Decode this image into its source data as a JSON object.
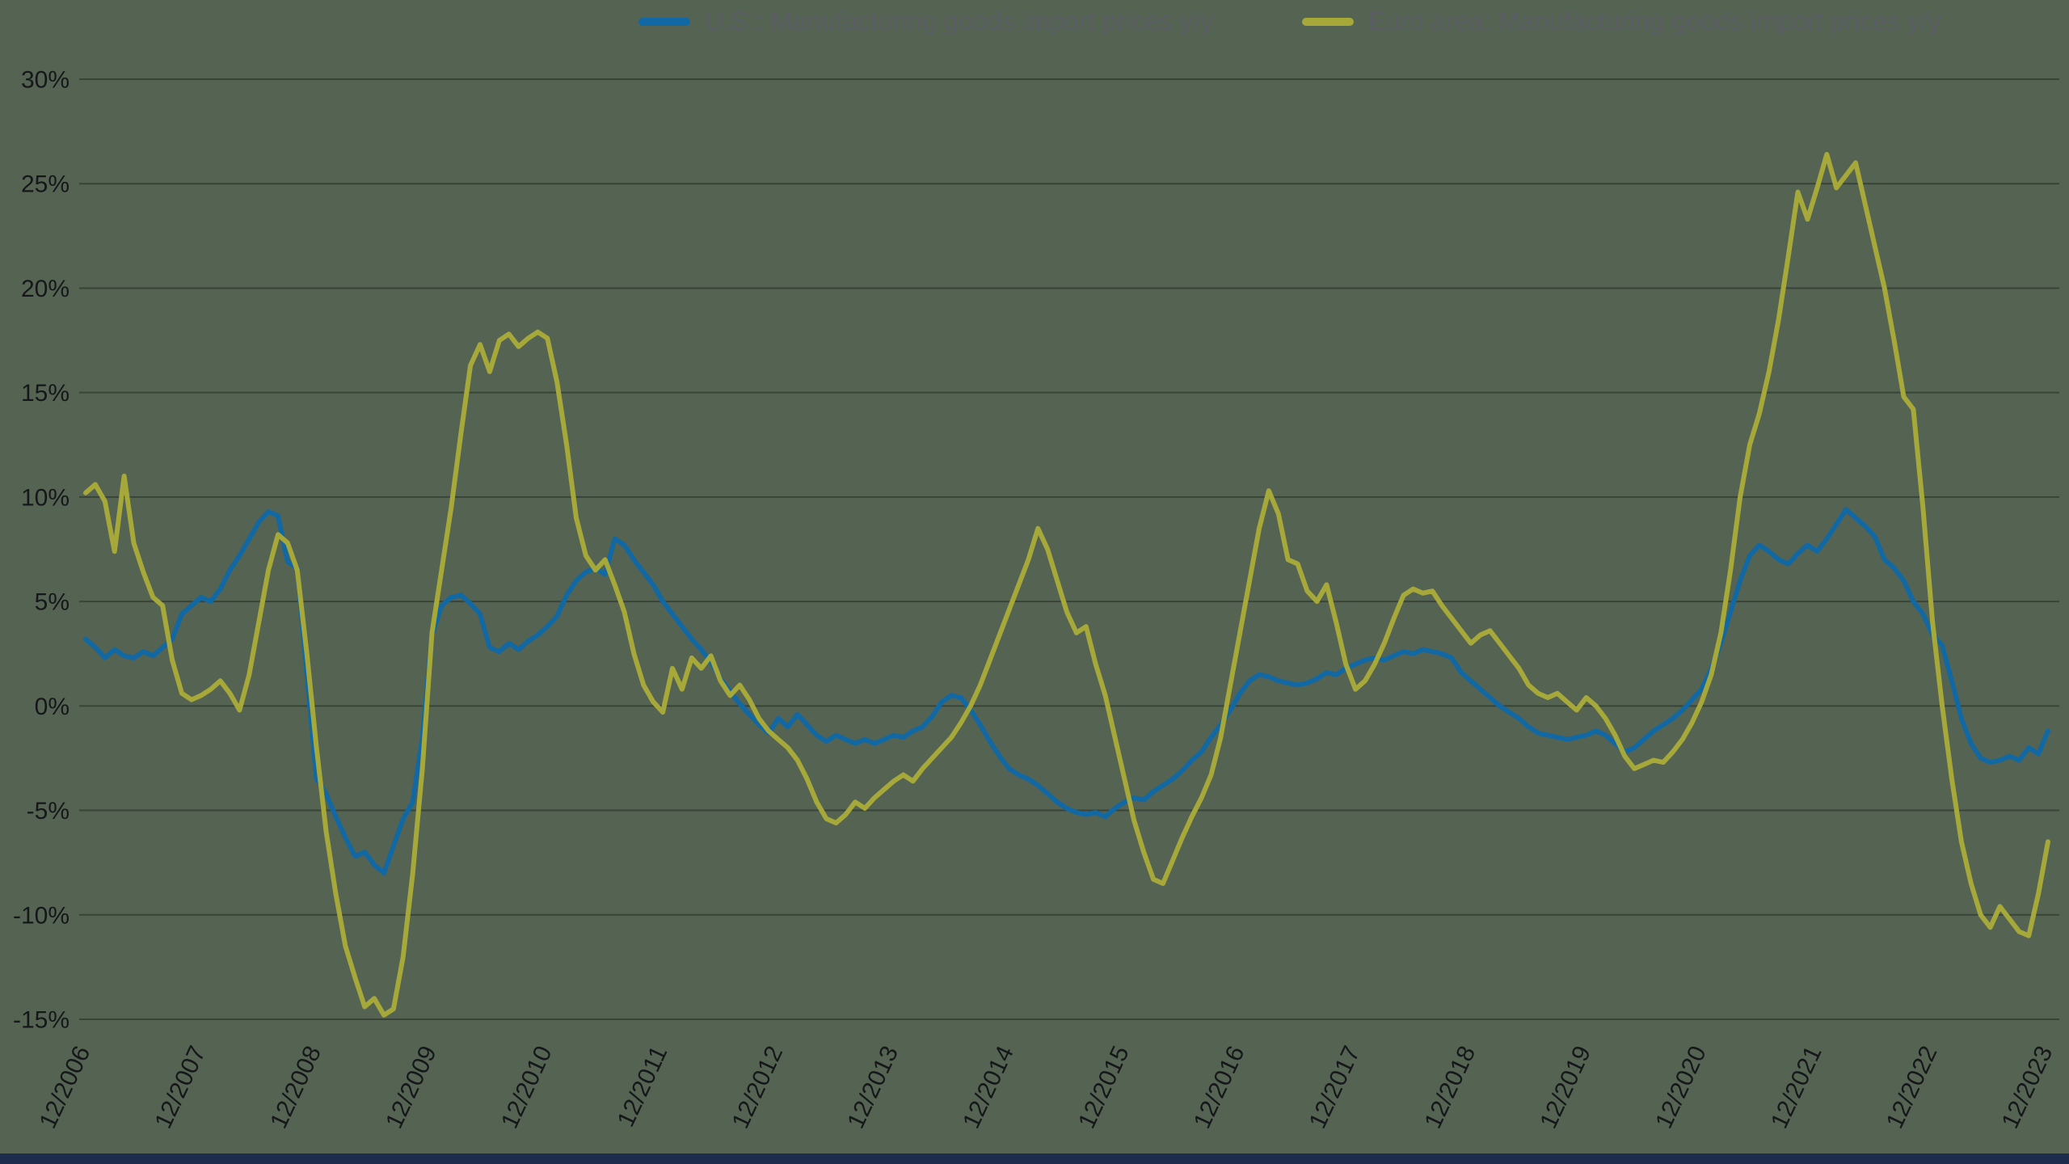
{
  "page": {
    "background_color": "#556452",
    "footer_bar_color": "#1d2b4d"
  },
  "legend": [
    {
      "label": "U.S.: Manufacturing goods import prices y/y",
      "color": "#1268a3"
    },
    {
      "label": "Euro area: Manufacturing goods import prices y/y",
      "color": "#a6a83a"
    }
  ],
  "chart_data": {
    "type": "line",
    "x_start": "12/2006",
    "x_interval": "monthly",
    "x_tick_labels": [
      "12/2006",
      "12/2007",
      "12/2008",
      "12/2009",
      "12/2010",
      "12/2011",
      "12/2012",
      "12/2013",
      "12/2014",
      "12/2015",
      "12/2016",
      "12/2017",
      "12/2018",
      "12/2019",
      "12/2020",
      "12/2021",
      "12/2022",
      "12/2023"
    ],
    "x_tick_every_n_points": 12,
    "y_ticks": [
      30,
      25,
      20,
      15,
      10,
      5,
      0,
      -5,
      -10,
      -15
    ],
    "y_tick_suffix": "%",
    "ylim": [
      -15,
      30
    ],
    "grid": true,
    "legend_position": "top",
    "line_width": 6,
    "series": [
      {
        "name": "U.S.: Manufacturing goods import prices y/y",
        "color": "#1268a3",
        "values": [
          3.2,
          2.8,
          2.3,
          2.7,
          2.4,
          2.3,
          2.6,
          2.4,
          2.8,
          3.2,
          4.4,
          4.8,
          5.2,
          5.0,
          5.6,
          6.5,
          7.2,
          8.0,
          8.8,
          9.3,
          9.1,
          6.9,
          6.6,
          1.5,
          -3.5,
          -4.2,
          -5.3,
          -6.3,
          -7.2,
          -7.0,
          -7.6,
          -8.0,
          -6.7,
          -5.4,
          -4.6,
          -1.5,
          3.4,
          4.8,
          5.2,
          5.3,
          4.9,
          4.4,
          2.8,
          2.6,
          3.0,
          2.7,
          3.1,
          3.4,
          3.8,
          4.3,
          5.3,
          6.0,
          6.4,
          6.6,
          6.3,
          8.0,
          7.7,
          7.0,
          6.4,
          5.8,
          5.0,
          4.4,
          3.8,
          3.2,
          2.7,
          2.1,
          1.3,
          0.7,
          0.1,
          -0.4,
          -0.9,
          -1.3,
          -0.6,
          -1.0,
          -0.4,
          -0.9,
          -1.4,
          -1.7,
          -1.4,
          -1.6,
          -1.8,
          -1.6,
          -1.8,
          -1.6,
          -1.4,
          -1.5,
          -1.2,
          -1.0,
          -0.5,
          0.2,
          0.5,
          0.4,
          -0.2,
          -0.9,
          -1.7,
          -2.4,
          -3.0,
          -3.3,
          -3.5,
          -3.8,
          -4.2,
          -4.6,
          -4.9,
          -5.1,
          -5.2,
          -5.1,
          -5.3,
          -4.9,
          -4.6,
          -4.4,
          -4.5,
          -4.1,
          -3.8,
          -3.5,
          -3.1,
          -2.6,
          -2.2,
          -1.5,
          -0.9,
          -0.2,
          0.6,
          1.2,
          1.5,
          1.4,
          1.2,
          1.1,
          1.0,
          1.1,
          1.3,
          1.6,
          1.5,
          1.8,
          2.0,
          2.2,
          2.3,
          2.2,
          2.4,
          2.6,
          2.5,
          2.7,
          2.6,
          2.5,
          2.3,
          1.6,
          1.2,
          0.8,
          0.4,
          0.0,
          -0.3,
          -0.6,
          -1.0,
          -1.3,
          -1.4,
          -1.5,
          -1.6,
          -1.5,
          -1.4,
          -1.2,
          -1.4,
          -1.8,
          -2.2,
          -2.0,
          -1.6,
          -1.2,
          -0.9,
          -0.6,
          -0.2,
          0.3,
          0.8,
          1.8,
          3.0,
          4.5,
          6.0,
          7.2,
          7.7,
          7.4,
          7.0,
          6.8,
          7.3,
          7.7,
          7.4,
          8.0,
          8.7,
          9.4,
          9.0,
          8.6,
          8.1,
          7.0,
          6.6,
          6.0,
          5.0,
          4.4,
          3.4,
          2.9,
          1.2,
          -0.6,
          -1.8,
          -2.5,
          -2.7,
          -2.6,
          -2.4,
          -2.6,
          -2.0,
          -2.3,
          -1.2
        ]
      },
      {
        "name": "Euro area: Manufacturing goods import prices y/y",
        "color": "#a6a83a",
        "values": [
          10.2,
          10.6,
          9.8,
          7.4,
          11.0,
          7.8,
          6.4,
          5.2,
          4.8,
          2.2,
          0.6,
          0.3,
          0.5,
          0.8,
          1.2,
          0.6,
          -0.2,
          1.5,
          4.0,
          6.5,
          8.2,
          7.8,
          6.5,
          2.5,
          -2.0,
          -6.0,
          -9.0,
          -11.5,
          -13.0,
          -14.4,
          -14.0,
          -14.8,
          -14.5,
          -12.0,
          -8.0,
          -3.0,
          3.5,
          6.5,
          9.5,
          13.0,
          16.3,
          17.3,
          16.0,
          17.5,
          17.8,
          17.2,
          17.6,
          17.9,
          17.6,
          15.5,
          12.5,
          9.0,
          7.2,
          6.5,
          7.0,
          5.8,
          4.5,
          2.5,
          1.0,
          0.2,
          -0.3,
          1.8,
          0.8,
          2.3,
          1.8,
          2.4,
          1.2,
          0.5,
          1.0,
          0.3,
          -0.6,
          -1.2,
          -1.6,
          -2.0,
          -2.6,
          -3.5,
          -4.6,
          -5.4,
          -5.6,
          -5.2,
          -4.6,
          -4.9,
          -4.4,
          -4.0,
          -3.6,
          -3.3,
          -3.6,
          -3.0,
          -2.5,
          -2.0,
          -1.5,
          -0.8,
          0.0,
          1.0,
          2.2,
          3.4,
          4.6,
          5.8,
          7.0,
          8.5,
          7.5,
          6.0,
          4.5,
          3.5,
          3.8,
          2.0,
          0.5,
          -1.5,
          -3.5,
          -5.5,
          -7.0,
          -8.3,
          -8.5,
          -7.4,
          -6.3,
          -5.3,
          -4.4,
          -3.3,
          -1.5,
          1.0,
          3.5,
          6.0,
          8.5,
          10.3,
          9.2,
          7.0,
          6.8,
          5.5,
          5.0,
          5.8,
          4.0,
          2.0,
          0.8,
          1.2,
          2.0,
          3.0,
          4.2,
          5.3,
          5.6,
          5.4,
          5.5,
          4.8,
          4.2,
          3.6,
          3.0,
          3.4,
          3.6,
          3.0,
          2.4,
          1.8,
          1.0,
          0.6,
          0.4,
          0.6,
          0.2,
          -0.2,
          0.4,
          0.0,
          -0.6,
          -1.4,
          -2.4,
          -3.0,
          -2.8,
          -2.6,
          -2.7,
          -2.2,
          -1.6,
          -0.8,
          0.2,
          1.5,
          3.5,
          6.5,
          10.0,
          12.5,
          14.0,
          16.0,
          18.5,
          21.5,
          24.6,
          23.3,
          24.8,
          26.4,
          24.8,
          25.4,
          26.0,
          24.0,
          22.0,
          20.0,
          17.5,
          14.8,
          14.2,
          9.5,
          4.0,
          0.0,
          -3.5,
          -6.5,
          -8.5,
          -10.0,
          -10.6,
          -9.6,
          -10.2,
          -10.8,
          -11.0,
          -9.0,
          -6.5
        ]
      }
    ]
  }
}
